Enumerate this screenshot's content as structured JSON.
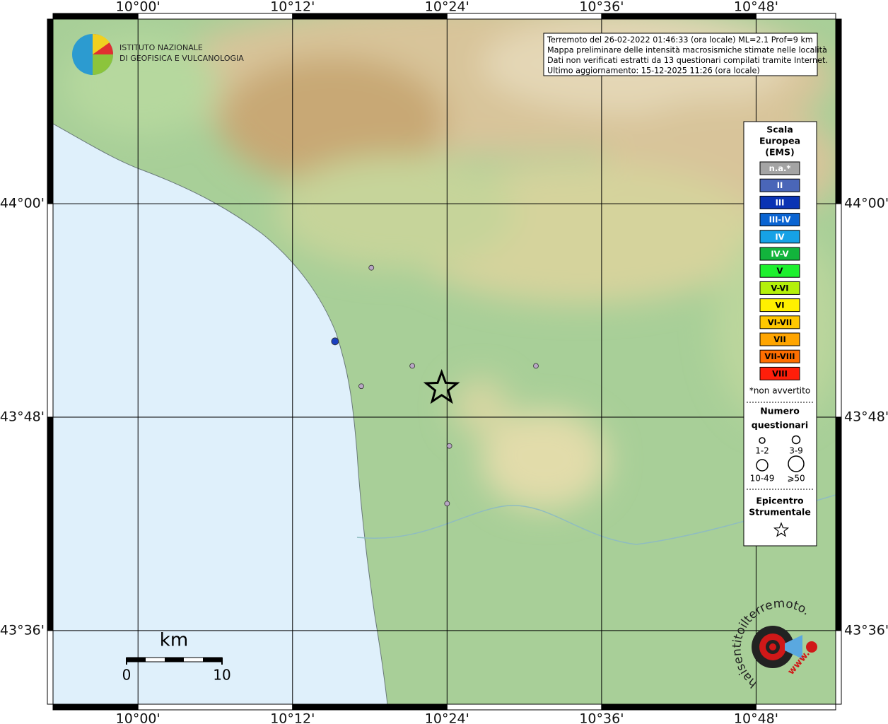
{
  "map": {
    "info": [
      "Terremoto del 26-02-2022 01:46:33 (ora locale) ML=2.1 Prof=9 km",
      "Mappa preliminare delle intensità macrosismiche stimate nelle località",
      "Dati non verificati estratti da 13 questionari compilati tramite Internet.",
      "Ultimo aggiornamento: 15-12-2025 11:26 (ora locale)"
    ],
    "xlim": [
      9.89,
      10.903
    ],
    "ylim": [
      43.531,
      44.173
    ],
    "xticks": [
      {
        "value": 10.0,
        "label": "10°00'"
      },
      {
        "value": 10.2,
        "label": "10°12'"
      },
      {
        "value": 10.4,
        "label": "10°24'"
      },
      {
        "value": 10.6,
        "label": "10°36'"
      },
      {
        "value": 10.8,
        "label": "10°48'"
      }
    ],
    "yticks": [
      {
        "value": 44.0,
        "label": "44°00'"
      },
      {
        "value": 43.8,
        "label": "43°48'"
      },
      {
        "value": 43.6,
        "label": "43°36'"
      }
    ],
    "points": [
      {
        "lon": 10.302,
        "lat": 43.94,
        "color": "#b8a6c4"
      },
      {
        "lon": 10.255,
        "lat": 43.871,
        "color": "#1a3fbf"
      },
      {
        "lon": 10.355,
        "lat": 43.848,
        "color": "#b8a6c4"
      },
      {
        "lon": 10.515,
        "lat": 43.848,
        "color": "#b8a6c4"
      },
      {
        "lon": 10.289,
        "lat": 43.829,
        "color": "#b8a6c4"
      },
      {
        "lon": 10.403,
        "lat": 43.773,
        "color": "#b8a6c4"
      },
      {
        "lon": 10.4,
        "lat": 43.719,
        "color": "#b8a6c4"
      }
    ],
    "epicenter": {
      "lon": 10.393,
      "lat": 43.827
    }
  },
  "legend": {
    "title": [
      "Scala",
      "Europea",
      "(EMS)"
    ],
    "items": [
      {
        "label": "n.a.*",
        "color": "#a4a4a4"
      },
      {
        "label": "II",
        "color": "#4a66b8"
      },
      {
        "label": "III",
        "color": "#0a33b4"
      },
      {
        "label": "III-IV",
        "color": "#0a64d2"
      },
      {
        "label": "IV",
        "color": "#16a2e6"
      },
      {
        "label": "IV-V",
        "color": "#12b43c"
      },
      {
        "label": "V",
        "color": "#1ef02e"
      },
      {
        "label": "V-VI",
        "color": "#b4f00a"
      },
      {
        "label": "VI",
        "color": "#fff000"
      },
      {
        "label": "VI-VII",
        "color": "#ffc800"
      },
      {
        "label": "VII",
        "color": "#ffa500"
      },
      {
        "label": "VII-VIII",
        "color": "#ff6e00"
      },
      {
        "label": "VIII",
        "color": "#ff1e0a"
      }
    ],
    "note": "*non avvertito",
    "count_title": [
      "Numero",
      "questionari"
    ],
    "count_labels": [
      "1-2",
      "3-9",
      "10-49",
      "⩾50"
    ],
    "epicenter_title": [
      "Epicentro",
      "Strumentale"
    ]
  },
  "scale_bar": {
    "unit": "km",
    "labels": [
      0,
      10
    ]
  },
  "logos": {
    "ingv": [
      "ISTITUTO NAZIONALE",
      "DI GEOFISICA E VULCANOLOGIA"
    ],
    "hsit": "haisentitoilterremoto.it",
    "www": "www."
  }
}
